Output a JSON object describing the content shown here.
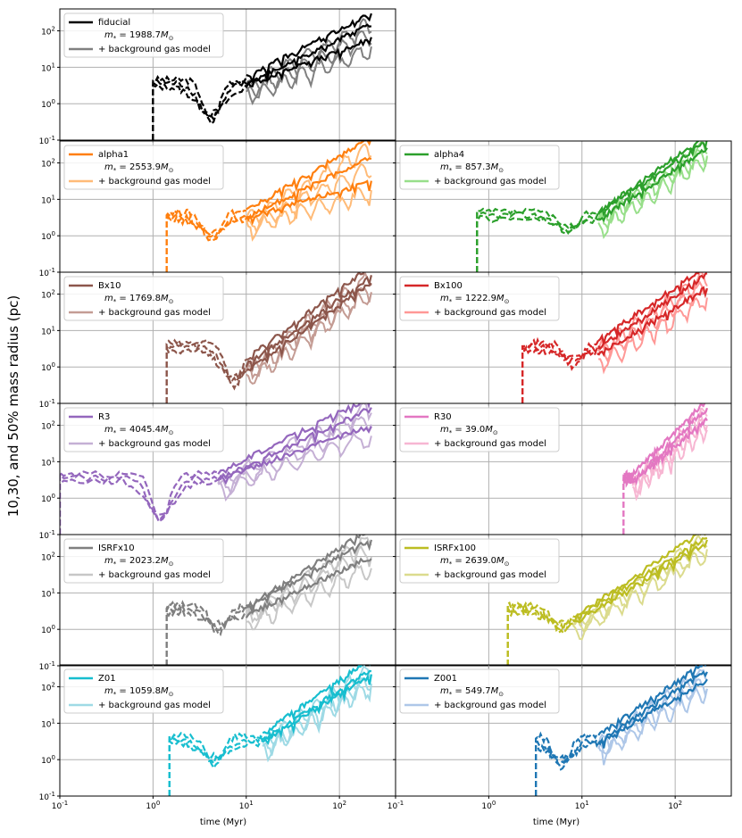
{
  "figure": {
    "ylabel": "10,30, and 50% mass radius (pc)",
    "xlabel": "time (Myr)",
    "x_ticks": [
      "10^{-1}",
      "10^{0}",
      "10^{1}",
      "10^{2}",
      "10^{-1}"
    ],
    "y_ticks": [
      "10^{-1}",
      "10^{0}",
      "10^{1}",
      "10^{2}"
    ],
    "legend_second_entry": "+ background gas model"
  },
  "chart_data": [
    {
      "type": "line",
      "name": "fiducial",
      "mass_label": "1988.7",
      "color": "#000000",
      "light_color": "#808080",
      "xscale": "log",
      "yscale": "log",
      "xlim": [
        0.1,
        400
      ],
      "ylim": [
        0.1,
        400
      ],
      "grid": true,
      "legend": "top-left",
      "onset_myr": 1.0,
      "solid_from_myr": 10,
      "end_values_pc": [
        300,
        150,
        60
      ],
      "dip": [
        4.2,
        0.3
      ],
      "series": [
        {
          "name": "fiducial",
          "line": "dashed then solid"
        },
        {
          "name": "+ background gas model",
          "line": "solid"
        }
      ]
    },
    {
      "type": "line",
      "name": "alpha1",
      "mass_label": "2553.9",
      "color": "#ff7f0e",
      "light_color": "#ffbb78",
      "xscale": "log",
      "yscale": "log",
      "xlim": [
        0.1,
        400
      ],
      "ylim": [
        0.1,
        400
      ],
      "grid": true,
      "legend": "top-left",
      "onset_myr": 1.4,
      "solid_from_myr": 10,
      "end_values_pc": [
        500,
        150,
        30
      ],
      "dip": [
        4.2,
        0.7
      ],
      "series": [
        {
          "name": "alpha1",
          "line": "dashed then solid"
        },
        {
          "name": "+ background gas model",
          "line": "solid"
        }
      ]
    },
    {
      "type": "line",
      "name": "alpha4",
      "mass_label": "857.3",
      "color": "#2ca02c",
      "light_color": "#98df8a",
      "xscale": "log",
      "yscale": "log",
      "xlim": [
        0.1,
        400
      ],
      "ylim": [
        0.1,
        400
      ],
      "grid": true,
      "legend": "top-left",
      "onset_myr": 0.75,
      "solid_from_myr": 15,
      "end_values_pc": [
        600,
        400,
        250
      ],
      "dip": [
        7,
        1.0
      ],
      "series": [
        {
          "name": "alpha4",
          "line": "dashed then solid"
        },
        {
          "name": "+ background gas model",
          "line": "solid"
        }
      ]
    },
    {
      "type": "line",
      "name": "Bx10",
      "mass_label": "1769.8",
      "color": "#8c564b",
      "light_color": "#c49c94",
      "xscale": "log",
      "yscale": "log",
      "xlim": [
        0.1,
        400
      ],
      "ylim": [
        0.1,
        400
      ],
      "grid": true,
      "legend": "top-left",
      "onset_myr": 1.4,
      "solid_from_myr": 10,
      "end_values_pc": [
        600,
        300,
        200
      ],
      "dip": [
        7.5,
        0.3
      ],
      "series": [
        {
          "name": "Bx10",
          "line": "dashed then solid"
        },
        {
          "name": "+ background gas model",
          "line": "solid"
        }
      ]
    },
    {
      "type": "line",
      "name": "Bx100",
      "mass_label": "1222.9",
      "color": "#d62728",
      "light_color": "#ff9896",
      "xscale": "log",
      "yscale": "log",
      "xlim": [
        0.1,
        400
      ],
      "ylim": [
        0.1,
        400
      ],
      "grid": true,
      "legend": "top-left",
      "onset_myr": 2.3,
      "solid_from_myr": 15,
      "end_values_pc": [
        600,
        350,
        150
      ],
      "dip": [
        8,
        1.0
      ],
      "series": [
        {
          "name": "Bx100",
          "line": "dashed then solid"
        },
        {
          "name": "+ background gas model",
          "line": "solid"
        }
      ]
    },
    {
      "type": "line",
      "name": "R3",
      "mass_label": "4045.4",
      "color": "#9467bd",
      "light_color": "#c5b0d5",
      "xscale": "log",
      "yscale": "log",
      "xlim": [
        0.1,
        400
      ],
      "ylim": [
        0.1,
        400
      ],
      "grid": true,
      "legend": "top-left",
      "onset_myr": 0.1,
      "solid_from_myr": 5,
      "end_values_pc": [
        600,
        300,
        100
      ],
      "dip": [
        1.2,
        0.2
      ],
      "series": [
        {
          "name": "R3",
          "line": "dashed then solid"
        },
        {
          "name": "+ background gas model",
          "line": "solid"
        }
      ]
    },
    {
      "type": "line",
      "name": "R30",
      "mass_label": "39.0",
      "color": "#e377c2",
      "light_color": "#f7b6d2",
      "xscale": "log",
      "yscale": "log",
      "xlim": [
        0.1,
        400
      ],
      "ylim": [
        0.1,
        400
      ],
      "grid": true,
      "legend": "top-left",
      "onset_myr": 28,
      "solid_from_myr": 35,
      "end_values_pc": [
        500,
        300,
        150
      ],
      "dip": null,
      "series": [
        {
          "name": "R30",
          "line": "dashed then solid"
        },
        {
          "name": "+ background gas model",
          "line": "solid"
        }
      ]
    },
    {
      "type": "line",
      "name": "ISRFx10",
      "mass_label": "2023.2",
      "color": "#7f7f7f",
      "light_color": "#c7c7c7",
      "xscale": "log",
      "yscale": "log",
      "xlim": [
        0.1,
        400
      ],
      "ylim": [
        0.1,
        400
      ],
      "grid": true,
      "legend": "top-left",
      "onset_myr": 1.4,
      "solid_from_myr": 10,
      "end_values_pc": [
        600,
        300,
        100
      ],
      "dip": [
        5,
        0.8
      ],
      "series": [
        {
          "name": "ISRFx10",
          "line": "dashed then solid"
        },
        {
          "name": "+ background gas model",
          "line": "solid"
        }
      ]
    },
    {
      "type": "line",
      "name": "ISRFx100",
      "mass_label": "2639.0",
      "color": "#bcbd22",
      "light_color": "#dbdb8d",
      "xscale": "log",
      "yscale": "log",
      "xlim": [
        0.1,
        400
      ],
      "ylim": [
        0.1,
        400
      ],
      "grid": true,
      "legend": "top-left",
      "onset_myr": 1.6,
      "solid_from_myr": 8,
      "end_values_pc": [
        600,
        350,
        250
      ],
      "dip": [
        6,
        0.8
      ],
      "series": [
        {
          "name": "ISRFx100",
          "line": "dashed then solid"
        },
        {
          "name": "+ background gas model",
          "line": "solid"
        }
      ]
    },
    {
      "type": "line",
      "name": "Z01",
      "mass_label": "1059.8",
      "color": "#17becf",
      "light_color": "#9edae5",
      "xscale": "log",
      "yscale": "log",
      "xlim": [
        0.1,
        400
      ],
      "ylim": [
        0.1,
        400
      ],
      "grid": true,
      "legend": "top-left",
      "onset_myr": 1.5,
      "solid_from_myr": 15,
      "end_values_pc": [
        600,
        300,
        200
      ],
      "dip": [
        4.5,
        0.7
      ],
      "series": [
        {
          "name": "Z01",
          "line": "dashed then solid"
        },
        {
          "name": "+ background gas model",
          "line": "solid"
        }
      ]
    },
    {
      "type": "line",
      "name": "Z001",
      "mass_label": "549.7",
      "color": "#1f77b4",
      "light_color": "#aec7e8",
      "xscale": "log",
      "yscale": "log",
      "xlim": [
        0.1,
        400
      ],
      "ylim": [
        0.1,
        400
      ],
      "grid": true,
      "legend": "top-left",
      "onset_myr": 3.2,
      "solid_from_myr": 15,
      "end_values_pc": [
        500,
        300,
        150
      ],
      "dip": [
        6,
        0.6
      ],
      "series": [
        {
          "name": "Z001",
          "line": "dashed then solid"
        },
        {
          "name": "+ background gas model",
          "line": "solid"
        }
      ]
    }
  ]
}
